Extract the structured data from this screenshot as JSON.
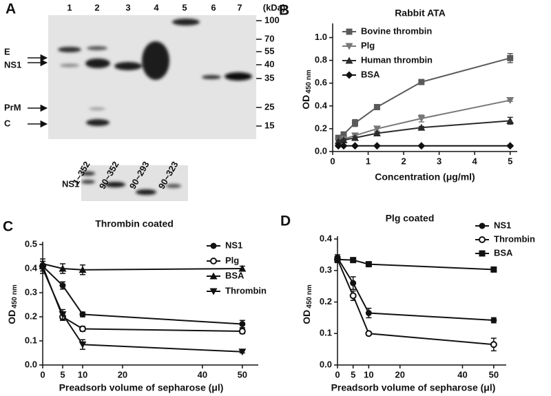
{
  "blot": {
    "panel": "A",
    "lanes": [
      "1",
      "2",
      "3",
      "4",
      "5",
      "6",
      "7"
    ],
    "unit": "(kDa)",
    "markers": [
      100,
      70,
      55,
      40,
      35,
      25,
      15
    ],
    "bands": [
      "E",
      "NS1",
      "PrM",
      "C"
    ],
    "constructs": [
      "1~352",
      "90~352",
      "90~293",
      "90~323"
    ],
    "lower_label": "NS1"
  },
  "chart_data": [
    {
      "type": "line",
      "panel": "B",
      "title": "Rabbit ATA",
      "xlabel": "Concentration (μg/ml)",
      "ylabel": {
        "main": "OD",
        "sub": "450 nm"
      },
      "x": [
        0.16,
        0.31,
        0.63,
        1.25,
        2.5,
        5
      ],
      "xlim": [
        0,
        5.2
      ],
      "xticks": [
        0,
        1,
        2,
        3,
        4,
        5
      ],
      "ylim": [
        0,
        1.1
      ],
      "yticks": [
        {
          "value": 0,
          "label": "0.0"
        },
        0.2,
        0.4,
        0.6,
        0.8,
        {
          "value": 1,
          "label": "1.0"
        }
      ],
      "legend": "upper left",
      "series": [
        {
          "name": "Bovine thrombin",
          "color": "#5a5a5a",
          "marker": "square",
          "values": [
            0.12,
            0.15,
            0.25,
            0.39,
            0.61,
            0.82
          ],
          "errors": [
            0.01,
            0.02,
            0.03,
            0.01,
            0.02,
            0.04
          ]
        },
        {
          "name": "Plg",
          "color": "#777777",
          "marker": "triangle-down",
          "values": [
            0.09,
            0.11,
            0.14,
            0.2,
            0.29,
            0.45
          ],
          "errors": [
            0.01,
            0.01,
            0.01,
            0.02,
            0.03,
            0.01
          ]
        },
        {
          "name": "Human thrombin",
          "color": "#2a2a2a",
          "marker": "triangle",
          "values": [
            0.09,
            0.1,
            0.12,
            0.16,
            0.21,
            0.27
          ],
          "errors": [
            0.01,
            0.01,
            0.01,
            0.01,
            0.01,
            0.03
          ]
        },
        {
          "name": "BSA",
          "color": "#111111",
          "marker": "diamond",
          "values": [
            0.05,
            0.05,
            0.05,
            0.05,
            0.05,
            0.05
          ],
          "errors": [
            0,
            0,
            0,
            0,
            0,
            0.005
          ]
        }
      ]
    },
    {
      "type": "line",
      "panel": "C",
      "title": "Thrombin coated",
      "xlabel": "Preadsorb volume of sepharose (μl)",
      "ylabel": {
        "main": "OD",
        "sub": "450 nm"
      },
      "x": [
        0,
        5,
        10,
        50
      ],
      "xlim": [
        0,
        54
      ],
      "xticks": [
        0,
        5,
        10,
        20,
        40,
        50
      ],
      "ylim": [
        0,
        0.5
      ],
      "yticks": [
        {
          "value": 0,
          "label": "0.0"
        },
        0.1,
        0.2,
        0.3,
        0.4,
        0.5
      ],
      "legend": "right",
      "series": [
        {
          "name": "NS1",
          "color": "#111111",
          "marker": "circle",
          "values": [
            0.41,
            0.33,
            0.21,
            0.17
          ],
          "errors": [
            0.02,
            0.015,
            0.01,
            0.015
          ]
        },
        {
          "name": "Plg",
          "color": "#111111",
          "marker": "circle-open",
          "values": [
            0.41,
            0.2,
            0.15,
            0.14
          ],
          "errors": [
            0.02,
            0.015,
            0.01,
            0.01
          ]
        },
        {
          "name": "BSA",
          "color": "#111111",
          "marker": "triangle",
          "values": [
            0.42,
            0.4,
            0.395,
            0.4
          ],
          "errors": [
            0.02,
            0.02,
            0.02,
            0.01
          ]
        },
        {
          "name": "Thrombin",
          "color": "#111111",
          "marker": "triangle-down",
          "values": [
            0.4,
            0.21,
            0.085,
            0.055
          ],
          "errors": [
            0.02,
            0.02,
            0.02,
            0.005
          ]
        }
      ]
    },
    {
      "type": "line",
      "panel": "D",
      "title": "Plg coated",
      "xlabel": "Preadsorb volume of sepharose (μl)",
      "ylabel": {
        "main": "OD",
        "sub": "450 nm"
      },
      "x": [
        0,
        5,
        10,
        50
      ],
      "xlim": [
        0,
        54
      ],
      "xticks": [
        0,
        5,
        10,
        20,
        40,
        50
      ],
      "ylim": [
        0,
        0.4
      ],
      "yticks": [
        {
          "value": 0,
          "label": "0.0"
        },
        0.1,
        0.2,
        0.3,
        0.4
      ],
      "legend": "upper right",
      "series": [
        {
          "name": "NS1",
          "color": "#111111",
          "marker": "circle",
          "values": [
            0.34,
            0.26,
            0.165,
            0.142
          ],
          "errors": [
            0.01,
            0.02,
            0.015,
            0.008
          ]
        },
        {
          "name": "Thrombin",
          "color": "#111111",
          "marker": "circle-open",
          "values": [
            0.335,
            0.22,
            0.1,
            0.065
          ],
          "errors": [
            0.01,
            0.015,
            0.005,
            0.02
          ]
        },
        {
          "name": "BSA",
          "color": "#111111",
          "marker": "square",
          "values": [
            0.335,
            0.333,
            0.32,
            0.303
          ],
          "errors": [
            0.005,
            0.004,
            0.004,
            0.004
          ]
        }
      ]
    }
  ]
}
